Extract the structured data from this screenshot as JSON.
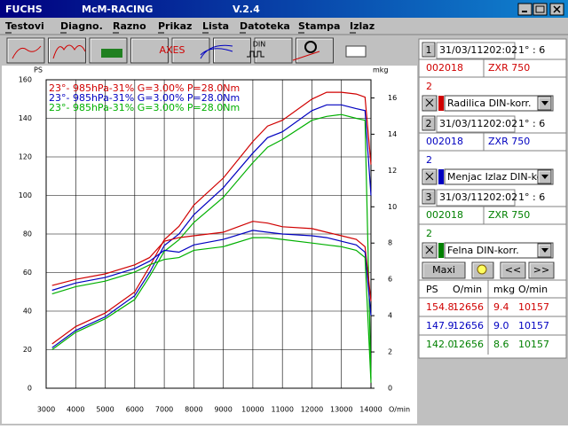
{
  "window": {
    "title": "FUCHS",
    "app": "McM-RACING",
    "version": "V.2.4"
  },
  "menu": [
    "Testovi",
    "Diagno.",
    "Razno",
    "Prikaz",
    "Lista",
    "Datoteka",
    "Stampa",
    "Izlaz"
  ],
  "toolbar_labels": [
    "AXES",
    "DIN"
  ],
  "chart_data": {
    "type": "line",
    "y_label": "PS",
    "y2_label": "mkg",
    "x_label": "O/min",
    "x": [
      3200,
      4000,
      5000,
      6000,
      6500,
      7000,
      7500,
      8000,
      9000,
      10000,
      10500,
      11000,
      12000,
      12500,
      13000,
      13500,
      13800,
      14000
    ],
    "xlim": [
      3000,
      14000
    ],
    "xticks": [
      3000,
      4000,
      5000,
      6000,
      7000,
      8000,
      9000,
      10000,
      11000,
      12000,
      13000,
      14000
    ],
    "ylim": [
      0,
      160
    ],
    "yticks": [
      0,
      20,
      40,
      60,
      80,
      100,
      120,
      140,
      160
    ],
    "y2lim": [
      0,
      17
    ],
    "y2ticks": [
      0,
      2,
      4,
      6,
      8,
      10,
      12,
      14,
      16
    ],
    "grid": true,
    "series": [
      {
        "name": "23°- 985hPa-31% G=3.00% P=28.0Nm",
        "color": "#d00000",
        "values": [
          23,
          32,
          39,
          50,
          63,
          77,
          84,
          95,
          109,
          128,
          136,
          139,
          150,
          153.5,
          153.5,
          152.6,
          151,
          116
        ]
      },
      {
        "name": "23°- 985hPa-31% G=3.00% P=28.0Nm",
        "color": "#0000c0",
        "values": [
          21,
          30,
          37,
          48,
          60,
          74,
          80,
          90,
          104,
          122,
          130,
          133,
          144,
          147,
          147,
          145,
          144,
          100
        ]
      },
      {
        "name": "23°- 985hPa-31% G=3.00% P=28.0Nm",
        "color": "#00b000",
        "values": [
          20,
          29,
          36,
          46,
          58,
          71,
          77,
          86,
          99,
          117,
          125,
          129,
          139,
          141,
          142,
          140,
          139,
          5
        ]
      },
      {
        "color": "#d00000",
        "axis": "y2",
        "values": [
          5.66,
          6.0,
          6.3,
          6.8,
          7.2,
          8.1,
          8.3,
          8.4,
          8.6,
          9.2,
          9.1,
          8.9,
          8.8,
          8.6,
          8.4,
          8.2,
          7.8,
          4.8
        ]
      },
      {
        "color": "#0000c0",
        "axis": "y2",
        "values": [
          5.4,
          5.8,
          6.1,
          6.6,
          7.0,
          7.6,
          7.5,
          7.9,
          8.2,
          8.7,
          8.6,
          8.5,
          8.4,
          8.3,
          8.1,
          7.9,
          7.5,
          4
        ]
      },
      {
        "color": "#00b000",
        "axis": "y2",
        "values": [
          5.2,
          5.6,
          5.9,
          6.4,
          6.8,
          7.1,
          7.2,
          7.6,
          7.8,
          8.3,
          8.3,
          8.2,
          8.0,
          7.9,
          7.8,
          7.6,
          7.2,
          0.3
        ]
      }
    ]
  },
  "tests": [
    {
      "number": "1",
      "date": "31/03/11202:02",
      "gear": "1° : 6",
      "id": "002018",
      "model": "ZXR 750",
      "value": "2",
      "correction": "Radilica DIN-korr.",
      "color": "#d00000"
    },
    {
      "number": "2",
      "date": "31/03/11202:02",
      "gear": "1° : 6",
      "id": "002018",
      "model": "ZXR 750",
      "value": "2",
      "correction": "Menjac Izlaz DIN-korr.",
      "color": "#0000c0"
    },
    {
      "number": "3",
      "date": "31/03/11202:02",
      "gear": "1° : 6",
      "id": "002018",
      "model": "ZXR 750",
      "value": "2",
      "correction": "Felna DIN-korr.",
      "color": "#008000"
    }
  ],
  "buttons": [
    "Maxi",
    "<<",
    ">>"
  ],
  "results": {
    "headers": [
      "PS",
      "O/min",
      "mkg",
      "O/min"
    ],
    "rows": [
      [
        "154.8",
        "12656",
        "9.4",
        "10157"
      ],
      [
        "147.9",
        "12656",
        "9.0",
        "10157"
      ],
      [
        "142.0",
        "12656",
        "8.6",
        "10157"
      ]
    ]
  }
}
